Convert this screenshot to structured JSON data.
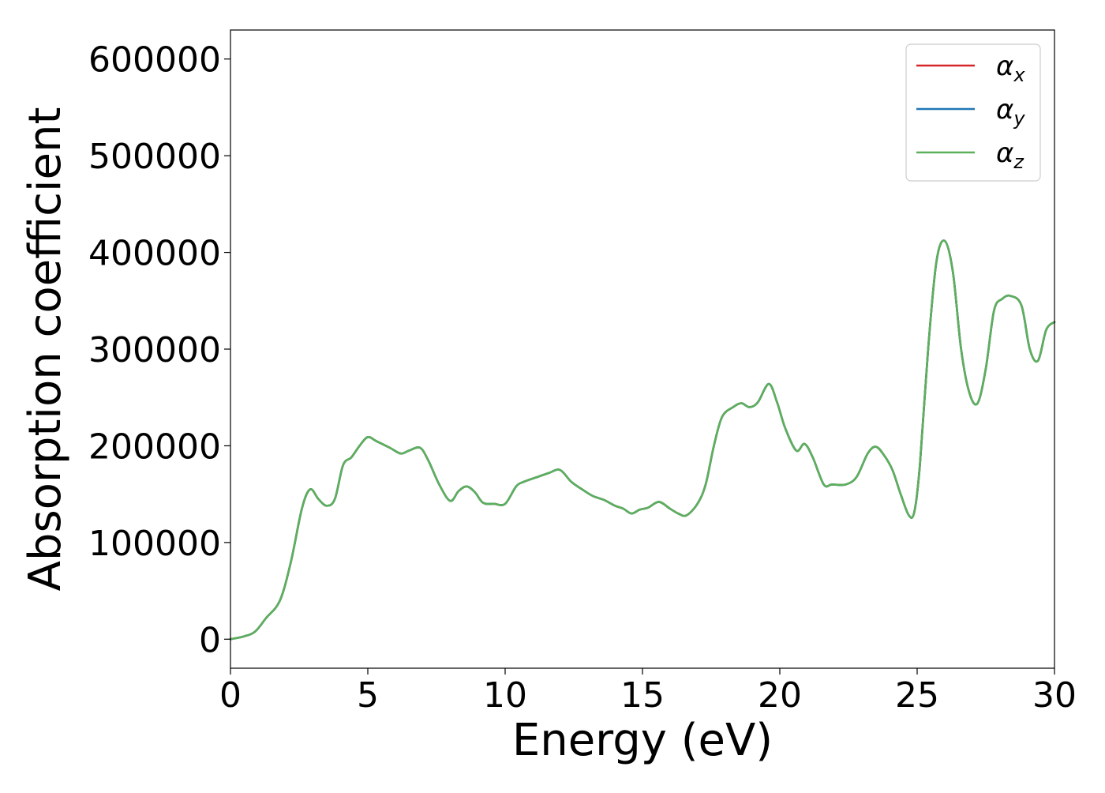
{
  "chart_data": {
    "type": "line",
    "title": "",
    "xlabel": "Energy (eV)",
    "ylabel": "Absorption coefficient",
    "xlim": [
      0,
      30
    ],
    "ylim": [
      -30000,
      630000
    ],
    "xticks": [
      0,
      5,
      10,
      15,
      20,
      25,
      30
    ],
    "yticks": [
      0,
      100000,
      200000,
      300000,
      400000,
      500000,
      600000
    ],
    "grid": false,
    "legend_position": "top-right",
    "x": [
      0,
      0.5,
      0.9,
      1.3,
      1.8,
      2.2,
      2.6,
      2.9,
      3.2,
      3.5,
      3.8,
      4.1,
      4.4,
      4.7,
      5.0,
      5.3,
      5.8,
      6.2,
      6.5,
      6.9,
      7.2,
      7.6,
      8.0,
      8.3,
      8.6,
      8.9,
      9.2,
      9.6,
      10.0,
      10.4,
      10.7,
      11.2,
      11.6,
      12.0,
      12.4,
      12.8,
      13.2,
      13.6,
      14.0,
      14.3,
      14.6,
      14.9,
      15.2,
      15.6,
      16.0,
      16.3,
      16.6,
      17.0,
      17.3,
      17.6,
      17.9,
      18.3,
      18.6,
      18.9,
      19.2,
      19.6,
      19.9,
      20.2,
      20.6,
      20.9,
      21.2,
      21.6,
      21.9,
      22.4,
      22.8,
      23.2,
      23.5,
      23.8,
      24.1,
      24.4,
      24.7,
      24.9,
      25.1,
      25.4,
      25.7,
      26.0,
      26.3,
      26.6,
      26.9,
      27.2,
      27.5,
      27.8,
      28.1,
      28.4,
      28.8,
      29.1,
      29.4,
      29.7,
      30.0
    ],
    "series": [
      {
        "name": "αx",
        "color": "#d62728",
        "values": [
          0,
          3000,
          8000,
          22000,
          40000,
          80000,
          135000,
          155000,
          145000,
          138000,
          145000,
          180000,
          188000,
          200000,
          209000,
          205000,
          198000,
          192000,
          195000,
          198000,
          185000,
          160000,
          143000,
          153000,
          158000,
          152000,
          141000,
          140000,
          140000,
          158000,
          163000,
          168000,
          172000,
          175000,
          163000,
          155000,
          148000,
          144000,
          138000,
          135000,
          130000,
          134000,
          136000,
          142000,
          135000,
          130000,
          128000,
          140000,
          160000,
          200000,
          230000,
          240000,
          244000,
          240000,
          245000,
          264000,
          245000,
          218000,
          195000,
          202000,
          188000,
          160000,
          160000,
          160000,
          168000,
          192000,
          199000,
          190000,
          175000,
          150000,
          128000,
          132000,
          180000,
          300000,
          390000,
          412000,
          380000,
          300000,
          255000,
          244000,
          280000,
          340000,
          352000,
          355000,
          345000,
          300000,
          288000,
          320000,
          328000
        ]
      },
      {
        "name": "αy",
        "color": "#1f77b4",
        "values": [
          0,
          3000,
          8000,
          22000,
          40000,
          80000,
          135000,
          155000,
          145000,
          138000,
          145000,
          180000,
          188000,
          200000,
          209000,
          205000,
          198000,
          192000,
          195000,
          198000,
          185000,
          160000,
          143000,
          153000,
          158000,
          152000,
          141000,
          140000,
          140000,
          158000,
          163000,
          168000,
          172000,
          175000,
          163000,
          155000,
          148000,
          144000,
          138000,
          135000,
          130000,
          134000,
          136000,
          142000,
          135000,
          130000,
          128000,
          140000,
          160000,
          200000,
          230000,
          240000,
          244000,
          240000,
          245000,
          264000,
          245000,
          218000,
          195000,
          202000,
          188000,
          160000,
          160000,
          160000,
          168000,
          192000,
          199000,
          190000,
          175000,
          150000,
          128000,
          132000,
          180000,
          300000,
          390000,
          412000,
          380000,
          300000,
          255000,
          244000,
          280000,
          340000,
          352000,
          355000,
          345000,
          300000,
          288000,
          320000,
          328000
        ]
      },
      {
        "name": "αz",
        "color": "#5cb05c",
        "values": [
          0,
          3000,
          8000,
          22000,
          40000,
          80000,
          135000,
          155000,
          145000,
          138000,
          145000,
          180000,
          188000,
          200000,
          209000,
          205000,
          198000,
          192000,
          195000,
          198000,
          185000,
          160000,
          143000,
          153000,
          158000,
          152000,
          141000,
          140000,
          140000,
          158000,
          163000,
          168000,
          172000,
          175000,
          163000,
          155000,
          148000,
          144000,
          138000,
          135000,
          130000,
          134000,
          136000,
          142000,
          135000,
          130000,
          128000,
          140000,
          160000,
          200000,
          230000,
          240000,
          244000,
          240000,
          245000,
          264000,
          245000,
          218000,
          195000,
          202000,
          188000,
          160000,
          160000,
          160000,
          168000,
          192000,
          199000,
          190000,
          175000,
          150000,
          128000,
          132000,
          180000,
          300000,
          390000,
          412000,
          380000,
          300000,
          255000,
          244000,
          280000,
          340000,
          352000,
          355000,
          345000,
          300000,
          288000,
          320000,
          328000
        ]
      }
    ]
  },
  "legend": {
    "entries": [
      {
        "base": "α",
        "sub": "x"
      },
      {
        "base": "α",
        "sub": "y"
      },
      {
        "base": "α",
        "sub": "z"
      }
    ]
  }
}
